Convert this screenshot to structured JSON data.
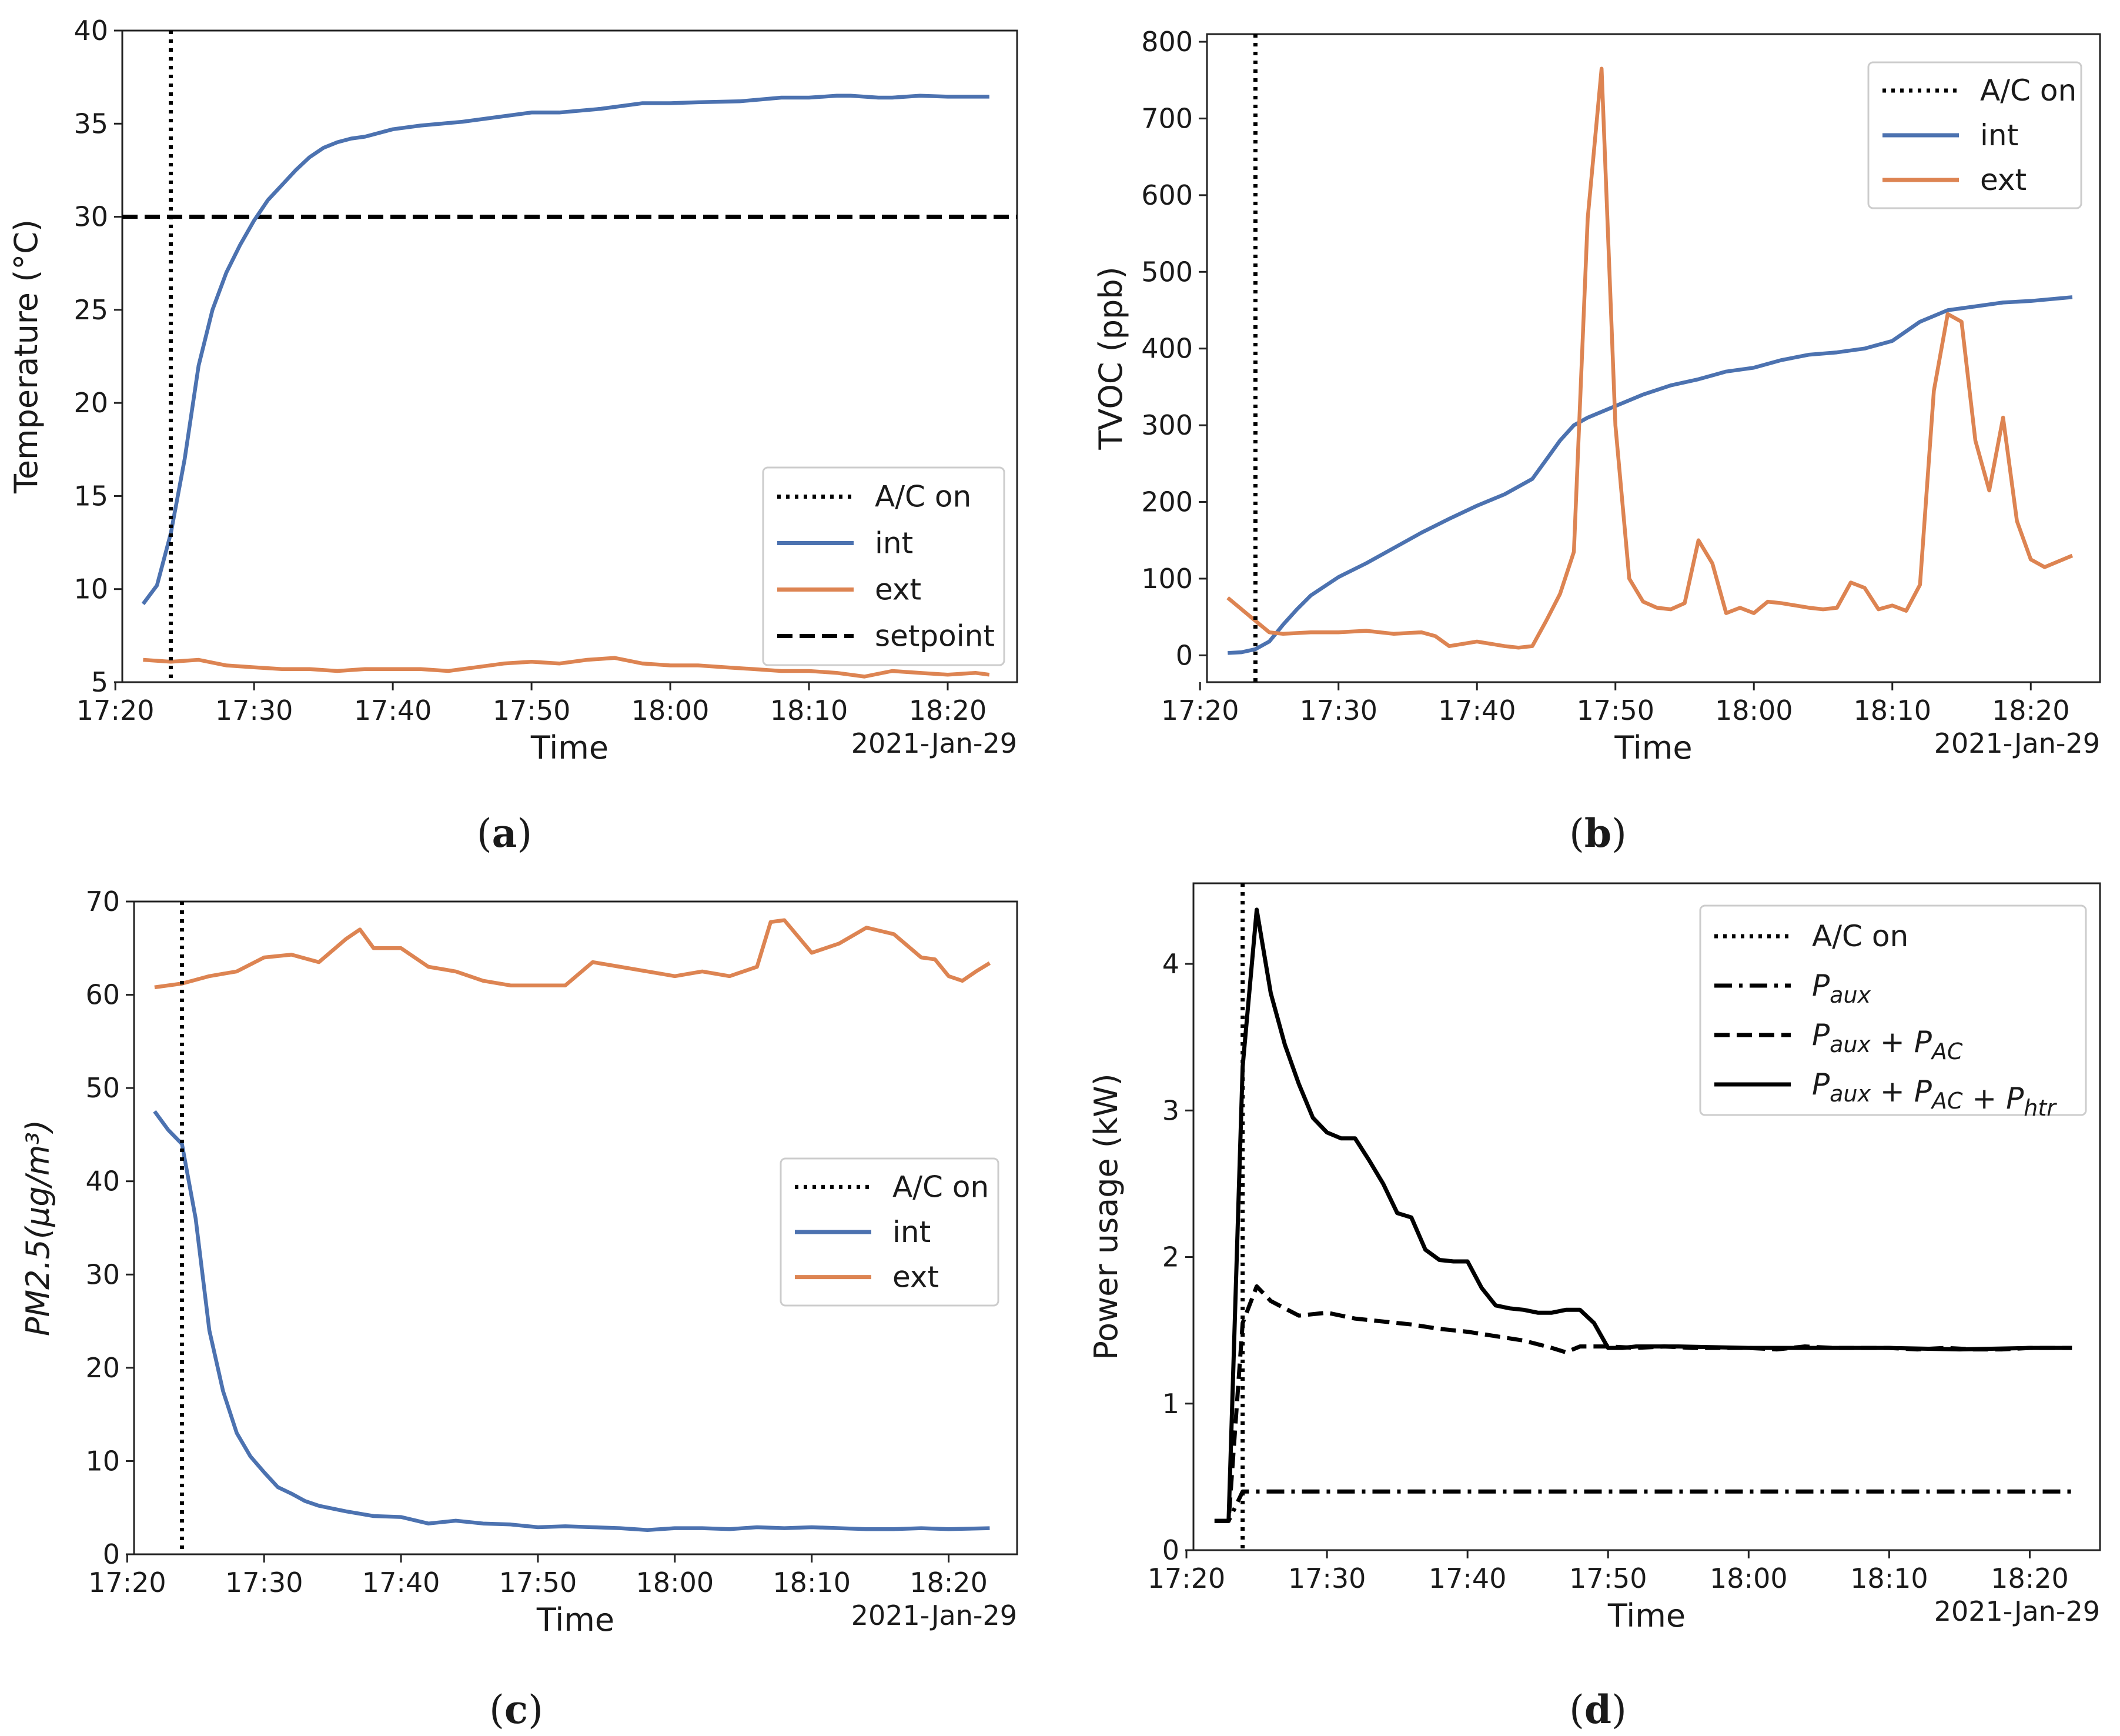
{
  "colors": {
    "int": "#4C72B0",
    "ext": "#DD8452",
    "black": "#000000"
  },
  "chart_data": [
    {
      "type": "line",
      "panel_label": "(a)",
      "panel_letter": "a",
      "xlabel": "Time",
      "ylabel": "Temperature (°C)",
      "date_label": "2021-Jan-29",
      "xlim": [
        1040.5,
        1105
      ],
      "ylim": [
        5,
        40
      ],
      "xticks": [
        1040,
        1050,
        1060,
        1070,
        1080,
        1090,
        1100
      ],
      "xtick_labels": [
        "17:20",
        "17:30",
        "17:40",
        "17:50",
        "18:00",
        "18:10",
        "18:20"
      ],
      "yticks": [
        5,
        10,
        15,
        20,
        25,
        30,
        35,
        40
      ],
      "ytick_labels": [
        "5",
        "10",
        "15",
        "20",
        "25",
        "30",
        "35",
        "40"
      ],
      "vline": {
        "name": "A/C on",
        "x": 1044,
        "style": "dotted"
      },
      "hline": {
        "name": "setpoint",
        "y": 30,
        "style": "dashed"
      },
      "legend": {
        "position": "lower right",
        "entries": [
          "A/C on",
          "int",
          "ext",
          "setpoint"
        ]
      },
      "series": [
        {
          "name": "int",
          "color_key": "int",
          "x": [
            1042,
            1043,
            1044,
            1045,
            1046,
            1047,
            1048,
            1049,
            1050,
            1051,
            1052,
            1053,
            1054,
            1055,
            1056,
            1057,
            1058,
            1060,
            1062,
            1065,
            1068,
            1070,
            1072,
            1075,
            1078,
            1080,
            1082,
            1085,
            1088,
            1090,
            1092,
            1093,
            1094,
            1095,
            1096,
            1098,
            1100,
            1103
          ],
          "values": [
            9.2,
            10.2,
            13.0,
            17.0,
            22.0,
            25.0,
            27.0,
            28.5,
            29.8,
            30.9,
            31.7,
            32.5,
            33.2,
            33.7,
            34.0,
            34.2,
            34.3,
            34.7,
            34.9,
            35.1,
            35.4,
            35.6,
            35.6,
            35.8,
            36.1,
            36.1,
            36.15,
            36.2,
            36.4,
            36.4,
            36.5,
            36.5,
            36.45,
            36.4,
            36.4,
            36.5,
            36.45,
            36.45
          ]
        },
        {
          "name": "ext",
          "color_key": "ext",
          "x": [
            1042,
            1044,
            1046,
            1048,
            1050,
            1052,
            1054,
            1056,
            1058,
            1060,
            1062,
            1064,
            1066,
            1068,
            1070,
            1072,
            1074,
            1076,
            1078,
            1080,
            1082,
            1084,
            1086,
            1088,
            1090,
            1092,
            1094,
            1096,
            1098,
            1100,
            1102,
            1103
          ],
          "values": [
            6.2,
            6.1,
            6.2,
            5.9,
            5.8,
            5.7,
            5.7,
            5.6,
            5.7,
            5.7,
            5.7,
            5.6,
            5.8,
            6.0,
            6.1,
            6.0,
            6.2,
            6.3,
            6.0,
            5.9,
            5.9,
            5.8,
            5.7,
            5.6,
            5.6,
            5.5,
            5.3,
            5.6,
            5.5,
            5.4,
            5.5,
            5.4
          ]
        }
      ]
    },
    {
      "type": "line",
      "panel_label": "(b)",
      "panel_letter": "b",
      "xlabel": "Time",
      "ylabel": "TVOC (ppb)",
      "date_label": "2021-Jan-29",
      "xlim": [
        1040.5,
        1105
      ],
      "ylim": [
        -35,
        810
      ],
      "xticks": [
        1040,
        1050,
        1060,
        1070,
        1080,
        1090,
        1100
      ],
      "xtick_labels": [
        "17:20",
        "17:30",
        "17:40",
        "17:50",
        "18:00",
        "18:10",
        "18:20"
      ],
      "yticks": [
        0,
        100,
        200,
        300,
        400,
        500,
        600,
        700,
        800
      ],
      "ytick_labels": [
        "0",
        "100",
        "200",
        "300",
        "400",
        "500",
        "600",
        "700",
        "800"
      ],
      "vline": {
        "name": "A/C on",
        "x": 1044,
        "style": "dotted"
      },
      "legend": {
        "position": "top-right",
        "entries": [
          "A/C on",
          "int",
          "ext"
        ]
      },
      "series": [
        {
          "name": "int",
          "color_key": "int",
          "x": [
            1042,
            1043,
            1044,
            1045,
            1046,
            1047,
            1048,
            1050,
            1052,
            1054,
            1056,
            1058,
            1060,
            1062,
            1064,
            1065,
            1066,
            1067,
            1068,
            1070,
            1072,
            1074,
            1076,
            1078,
            1080,
            1082,
            1084,
            1086,
            1088,
            1090,
            1092,
            1094,
            1096,
            1098,
            1100,
            1103
          ],
          "values": [
            3,
            4,
            8,
            18,
            40,
            60,
            78,
            102,
            120,
            140,
            160,
            178,
            195,
            210,
            230,
            255,
            280,
            300,
            310,
            325,
            340,
            352,
            360,
            370,
            375,
            385,
            392,
            395,
            400,
            410,
            435,
            450,
            455,
            460,
            462,
            467
          ]
        },
        {
          "name": "ext",
          "color_key": "ext",
          "x": [
            1042,
            1043,
            1044,
            1045,
            1046,
            1048,
            1050,
            1052,
            1054,
            1056,
            1057,
            1058,
            1060,
            1062,
            1063,
            1064,
            1065,
            1066,
            1067,
            1068,
            1069,
            1070,
            1071,
            1072,
            1073,
            1074,
            1075,
            1076,
            1077,
            1078,
            1079,
            1080,
            1081,
            1082,
            1083,
            1084,
            1085,
            1086,
            1087,
            1088,
            1089,
            1090,
            1091,
            1092,
            1093,
            1094,
            1095,
            1096,
            1097,
            1098,
            1099,
            1100,
            1101,
            1103
          ],
          "values": [
            75,
            60,
            45,
            30,
            28,
            30,
            30,
            32,
            28,
            30,
            25,
            12,
            18,
            12,
            10,
            12,
            45,
            80,
            135,
            570,
            765,
            300,
            100,
            70,
            62,
            60,
            68,
            150,
            120,
            55,
            62,
            55,
            70,
            68,
            65,
            62,
            60,
            62,
            95,
            88,
            60,
            65,
            58,
            92,
            345,
            445,
            435,
            280,
            215,
            310,
            175,
            125,
            115,
            130
          ]
        }
      ]
    },
    {
      "type": "line",
      "panel_label": "(c)",
      "panel_letter": "c",
      "xlabel": "Time",
      "ylabel": "PM2.5(µg/m³)",
      "date_label": "2021-Jan-29",
      "xlim": [
        1040.5,
        1105
      ],
      "ylim": [
        0,
        70
      ],
      "xticks": [
        1040,
        1050,
        1060,
        1070,
        1080,
        1090,
        1100
      ],
      "xtick_labels": [
        "17:20",
        "17:30",
        "17:40",
        "17:50",
        "18:00",
        "18:10",
        "18:20"
      ],
      "yticks": [
        0,
        10,
        20,
        30,
        40,
        50,
        60,
        70
      ],
      "ytick_labels": [
        "0",
        "10",
        "20",
        "30",
        "40",
        "50",
        "60",
        "70"
      ],
      "vline": {
        "name": "A/C on",
        "x": 1044,
        "style": "dotted"
      },
      "legend": {
        "position": "right",
        "entries": [
          "A/C on",
          "int",
          "ext"
        ]
      },
      "series": [
        {
          "name": "int",
          "color_key": "int",
          "x": [
            1042,
            1043,
            1044,
            1045,
            1046,
            1047,
            1048,
            1049,
            1050,
            1051,
            1052,
            1053,
            1054,
            1055,
            1056,
            1058,
            1060,
            1062,
            1064,
            1066,
            1068,
            1070,
            1072,
            1074,
            1076,
            1078,
            1080,
            1082,
            1084,
            1086,
            1088,
            1090,
            1092,
            1094,
            1096,
            1098,
            1100,
            1103
          ],
          "values": [
            47.5,
            45.5,
            44.0,
            36.0,
            24.0,
            17.5,
            13.0,
            10.5,
            8.8,
            7.2,
            6.5,
            5.7,
            5.2,
            4.9,
            4.6,
            4.1,
            4.0,
            3.3,
            3.6,
            3.3,
            3.2,
            2.9,
            3.0,
            2.9,
            2.8,
            2.6,
            2.8,
            2.8,
            2.7,
            2.9,
            2.8,
            2.9,
            2.8,
            2.7,
            2.7,
            2.8,
            2.7,
            2.8
          ]
        },
        {
          "name": "ext",
          "color_key": "ext",
          "x": [
            1042,
            1044,
            1046,
            1048,
            1050,
            1052,
            1054,
            1056,
            1057,
            1058,
            1060,
            1062,
            1064,
            1066,
            1068,
            1070,
            1072,
            1074,
            1076,
            1078,
            1080,
            1082,
            1084,
            1086,
            1087,
            1088,
            1090,
            1092,
            1094,
            1096,
            1098,
            1099,
            1100,
            1101,
            1102,
            1103
          ],
          "values": [
            60.8,
            61.2,
            62.0,
            62.5,
            64.0,
            64.3,
            63.5,
            66.0,
            67.0,
            65.0,
            65.0,
            63.0,
            62.5,
            61.5,
            61.0,
            61.0,
            61.0,
            63.5,
            63.0,
            62.5,
            62.0,
            62.5,
            62.0,
            63.0,
            67.8,
            68.0,
            64.5,
            65.5,
            67.2,
            66.5,
            64.0,
            63.8,
            62.0,
            61.5,
            62.5,
            63.4
          ]
        }
      ]
    },
    {
      "type": "line",
      "panel_label": "(d)",
      "panel_letter": "d",
      "xlabel": "Time",
      "ylabel": "Power usage (kW)",
      "date_label": "2021-Jan-29",
      "xlim": [
        1040.5,
        1105
      ],
      "ylim": [
        0,
        4.55
      ],
      "xticks": [
        1040,
        1050,
        1060,
        1070,
        1080,
        1090,
        1100
      ],
      "xtick_labels": [
        "17:20",
        "17:30",
        "17:40",
        "17:50",
        "18:00",
        "18:10",
        "18:20"
      ],
      "yticks": [
        0,
        1,
        2,
        3,
        4
      ],
      "ytick_labels": [
        "0",
        "1",
        "2",
        "3",
        "4"
      ],
      "vline": {
        "name": "A/C on",
        "x": 1044,
        "style": "dotted"
      },
      "legend": {
        "position": "top-right",
        "entries": [
          {
            "base": "A/C on"
          },
          {
            "base": "P",
            "subs": [
              "aux"
            ]
          },
          {
            "base": "P",
            "subs": [
              "aux",
              "AC"
            ]
          },
          {
            "base": "P",
            "subs": [
              "aux",
              "AC",
              "htr"
            ]
          }
        ],
        "plus": "+"
      },
      "series": [
        {
          "name": "Paux",
          "color_key": "black",
          "style": "dashdot",
          "x": [
            1042,
            1043,
            1044,
            1045,
            1103
          ],
          "values": [
            0.2,
            0.2,
            0.4,
            0.4,
            0.4
          ]
        },
        {
          "name": "Paux + PAC",
          "color_key": "black",
          "style": "dashed",
          "x": [
            1042,
            1043,
            1044,
            1045,
            1046,
            1047,
            1048,
            1050,
            1052,
            1054,
            1056,
            1058,
            1060,
            1062,
            1064,
            1066,
            1067,
            1068,
            1070,
            1072,
            1074,
            1076,
            1078,
            1080,
            1082,
            1084,
            1086,
            1088,
            1090,
            1092,
            1094,
            1096,
            1098,
            1100,
            1103
          ],
          "values": [
            0.2,
            0.2,
            1.55,
            1.8,
            1.7,
            1.65,
            1.6,
            1.62,
            1.58,
            1.56,
            1.54,
            1.51,
            1.49,
            1.46,
            1.43,
            1.38,
            1.35,
            1.39,
            1.39,
            1.38,
            1.39,
            1.38,
            1.38,
            1.38,
            1.37,
            1.39,
            1.38,
            1.38,
            1.38,
            1.37,
            1.38,
            1.37,
            1.37,
            1.38,
            1.38
          ]
        },
        {
          "name": "Paux + PAC + Phtr",
          "color_key": "black",
          "style": "solid",
          "x": [
            1042,
            1043,
            1044,
            1045,
            1046,
            1047,
            1048,
            1049,
            1050,
            1051,
            1052,
            1053,
            1054,
            1055,
            1056,
            1057,
            1058,
            1059,
            1060,
            1061,
            1062,
            1063,
            1064,
            1065,
            1066,
            1067,
            1068,
            1069,
            1070,
            1071,
            1072,
            1075,
            1080,
            1085,
            1090,
            1095,
            1100,
            1103
          ],
          "values": [
            0.2,
            0.2,
            3.3,
            4.37,
            3.8,
            3.45,
            3.18,
            2.95,
            2.85,
            2.81,
            2.81,
            2.66,
            2.5,
            2.3,
            2.27,
            2.05,
            1.98,
            1.97,
            1.97,
            1.79,
            1.67,
            1.65,
            1.64,
            1.62,
            1.62,
            1.64,
            1.64,
            1.55,
            1.38,
            1.38,
            1.39,
            1.39,
            1.38,
            1.38,
            1.38,
            1.37,
            1.38,
            1.38
          ]
        }
      ]
    }
  ]
}
